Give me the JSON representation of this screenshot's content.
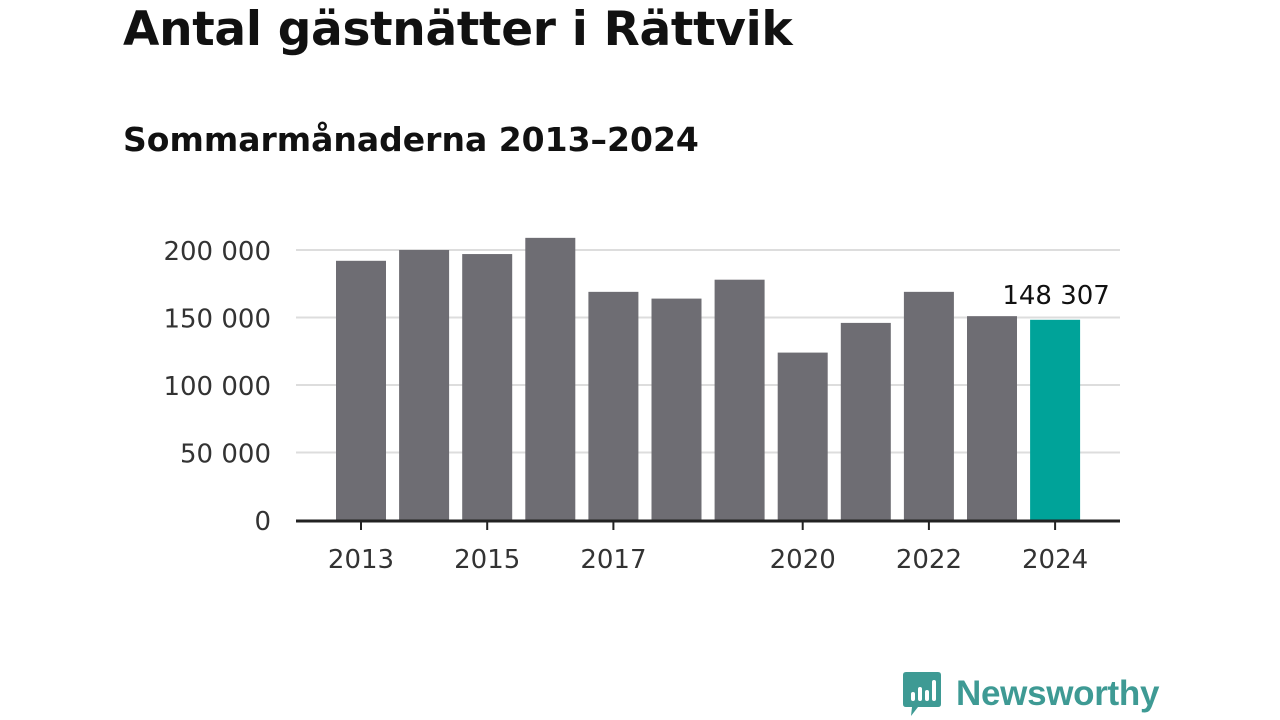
{
  "title": "Antal gästnätter i Rättvik",
  "subtitle": "Sommarmånaderna 2013–2024",
  "brand": {
    "name": "Newsworthy",
    "icon": "newsworthy-logo-icon"
  },
  "colors": {
    "bar": "#6e6d73",
    "highlight": "#00a399",
    "axis": "#222222",
    "grid": "#dddddd",
    "brand": "#3e9a94"
  },
  "chart_data": {
    "type": "bar",
    "categories": [
      "2013",
      "2014",
      "2015",
      "2016",
      "2017",
      "2018",
      "2019",
      "2020",
      "2021",
      "2022",
      "2023",
      "2024"
    ],
    "values": [
      192000,
      200000,
      197000,
      209000,
      169000,
      164000,
      178000,
      124000,
      146000,
      169000,
      151000,
      148307
    ],
    "highlight_index": 11,
    "highlight_label": "148 307",
    "ylim": [
      0,
      200000
    ],
    "yticks": [
      0,
      50000,
      100000,
      150000,
      200000
    ],
    "ytick_labels": [
      "0",
      "50 000",
      "100 000",
      "150 000",
      "200 000"
    ],
    "xtick_labels": [
      "2013",
      "2015",
      "2017",
      "2020",
      "2022",
      "2024"
    ],
    "grid": true,
    "legend": "none"
  }
}
